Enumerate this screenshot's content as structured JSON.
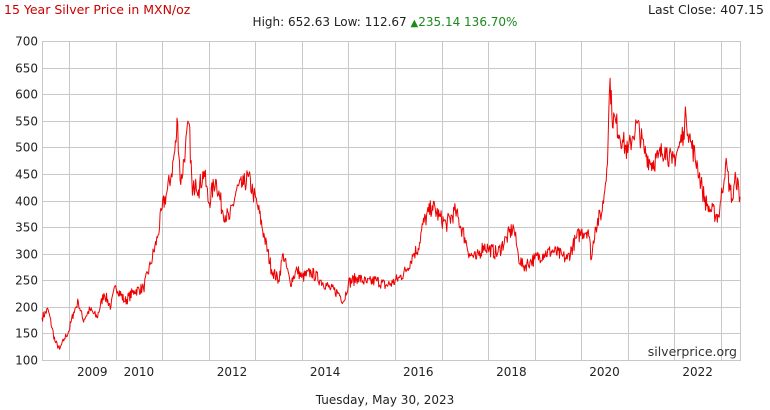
{
  "header": {
    "title": "15 Year Silver Price in MXN/oz",
    "last_close_label": "Last Close:",
    "last_close_value": "407.15",
    "high_label": "High:",
    "high_value": "652.63",
    "low_label": "Low:",
    "low_value": "112.67",
    "change_arrow": "▲",
    "change_value": "235.14",
    "change_pct": "136.70%"
  },
  "footer": {
    "date": "Tuesday, May 30, 2023"
  },
  "watermark": "silverprice.org",
  "colors": {
    "line": "#ee0000",
    "grid": "#c8c8c8",
    "positive": "#1a8a1a",
    "title": "#cc0000"
  },
  "chart_data": {
    "type": "line",
    "title": "15 Year Silver Price in MXN/oz",
    "xlabel": "",
    "ylabel": "",
    "ylim": [
      100,
      700
    ],
    "xlim": [
      2008.42,
      2023.41
    ],
    "yticks": [
      100,
      150,
      200,
      250,
      300,
      350,
      400,
      450,
      500,
      550,
      600,
      650,
      700
    ],
    "xticks": [
      "2009",
      "2010",
      "2012",
      "2014",
      "2016",
      "2018",
      "2020",
      "2022"
    ],
    "grid": true,
    "legend": "none",
    "series": [
      {
        "x": [
          2008.42,
          2008.55,
          2008.7,
          2008.8,
          2008.9,
          2009.0,
          2009.1,
          2009.2,
          2009.3,
          2009.45,
          2009.6,
          2009.75,
          2009.9,
          2010.0,
          2010.2,
          2010.4,
          2010.6,
          2010.75,
          2010.9,
          2011.0,
          2011.1,
          2011.2,
          2011.3,
          2011.32,
          2011.4,
          2011.5,
          2011.58,
          2011.65,
          2011.72,
          2011.78,
          2011.9,
          2012.0,
          2012.15,
          2012.3,
          2012.45,
          2012.6,
          2012.75,
          2012.85,
          2012.95,
          2013.05,
          2013.2,
          2013.35,
          2013.5,
          2013.6,
          2013.75,
          2013.9,
          2014.0,
          2014.2,
          2014.4,
          2014.6,
          2014.8,
          2014.9,
          2015.0,
          2015.2,
          2015.4,
          2015.6,
          2015.8,
          2015.95,
          2016.1,
          2016.25,
          2016.4,
          2016.5,
          2016.6,
          2016.8,
          2016.95,
          2017.1,
          2017.3,
          2017.5,
          2017.6,
          2017.75,
          2017.9,
          2018.0,
          2018.2,
          2018.4,
          2018.55,
          2018.65,
          2018.75,
          2018.9,
          2019.0,
          2019.2,
          2019.4,
          2019.6,
          2019.7,
          2019.9,
          2020.0,
          2020.15,
          2020.22,
          2020.3,
          2020.45,
          2020.55,
          2020.62,
          2020.66,
          2020.75,
          2020.9,
          2021.0,
          2021.1,
          2021.2,
          2021.35,
          2021.5,
          2021.65,
          2021.8,
          2021.95,
          2022.1,
          2022.2,
          2022.25,
          2022.35,
          2022.5,
          2022.6,
          2022.7,
          2022.8,
          2022.95,
          2023.0,
          2023.1,
          2023.2,
          2023.25,
          2023.32,
          2023.41
        ],
        "values": [
          180,
          195,
          135,
          120,
          140,
          155,
          190,
          210,
          175,
          195,
          180,
          225,
          200,
          240,
          210,
          230,
          235,
          280,
          330,
          385,
          415,
          450,
          510,
          555,
          430,
          500,
          545,
          410,
          440,
          420,
          455,
          395,
          440,
          380,
          365,
          420,
          430,
          445,
          415,
          390,
          330,
          270,
          250,
          300,
          245,
          270,
          255,
          265,
          250,
          235,
          225,
          210,
          245,
          255,
          245,
          250,
          240,
          245,
          255,
          270,
          300,
          310,
          355,
          390,
          370,
          355,
          380,
          330,
          300,
          290,
          315,
          310,
          300,
          330,
          350,
          295,
          275,
          285,
          290,
          300,
          305,
          295,
          290,
          330,
          340,
          345,
          290,
          350,
          380,
          460,
          630,
          560,
          545,
          510,
          490,
          520,
          545,
          495,
          470,
          480,
          500,
          470,
          500,
          530,
          560,
          510,
          465,
          420,
          390,
          380,
          370,
          400,
          470,
          420,
          400,
          445,
          407
        ]
      }
    ]
  }
}
